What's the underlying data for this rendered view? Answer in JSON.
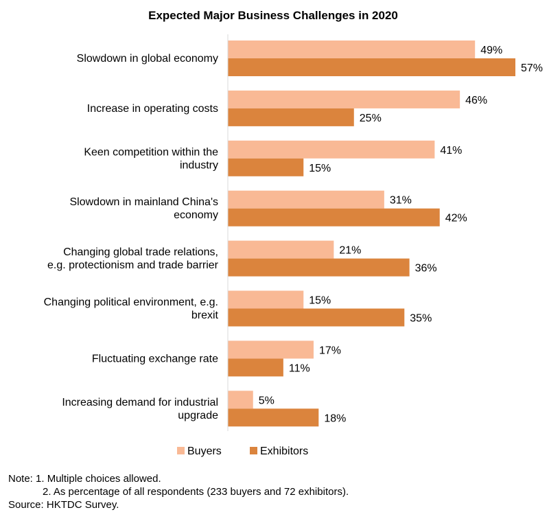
{
  "chart_data": {
    "type": "bar",
    "orientation": "horizontal",
    "title": "Expected Major Business Challenges in 2020",
    "categories": [
      [
        "Slowdown in global economy"
      ],
      [
        "Increase in operating costs"
      ],
      [
        "Keen competition within the",
        "industry"
      ],
      [
        "Slowdown in mainland China's",
        "economy"
      ],
      [
        "Changing global trade relations,",
        "e.g. protectionism and trade barrier"
      ],
      [
        "Changing political environment, e.g.",
        "brexit"
      ],
      [
        "Fluctuating exchange rate"
      ],
      [
        "Increasing demand for industrial",
        "upgrade"
      ]
    ],
    "series": [
      {
        "name": "Buyers",
        "color": "#F9B995",
        "values": [
          49,
          46,
          41,
          31,
          21,
          15,
          17,
          5
        ],
        "labels": [
          "49%",
          "46%",
          "41%",
          "31%",
          "21%",
          "15%",
          "17%",
          "5%"
        ]
      },
      {
        "name": "Exhibitors",
        "color": "#DB843D",
        "values": [
          57,
          25,
          15,
          42,
          36,
          35,
          11,
          18
        ],
        "labels": [
          "57%",
          "25%",
          "15%",
          "42%",
          "36%",
          "35%",
          "11%",
          "18%"
        ]
      }
    ],
    "xlim": [
      0,
      57
    ],
    "legend_position": "bottom",
    "grid": false
  },
  "notes": {
    "line1": "Note: 1. Multiple choices allowed.",
    "line2": "2. As percentage of all respondents (233 buyers and 72 exhibitors).",
    "line3": "Source: HKTDC Survey."
  }
}
